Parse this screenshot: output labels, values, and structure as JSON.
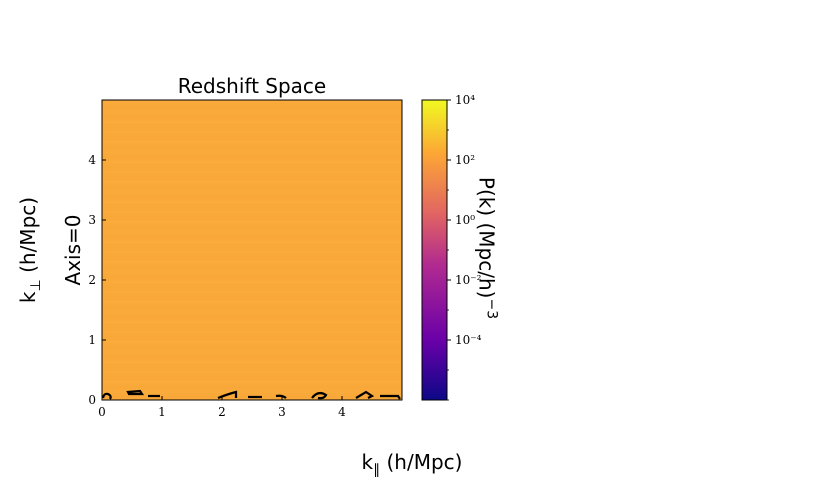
{
  "chart_data": {
    "type": "heatmap",
    "title": "Redshift Space",
    "xlabel": "k∥ (h/Mpc)",
    "ylabel": "k⊥ (h/Mpc)",
    "row_label": "Axis=0",
    "xlim": [
      0,
      5
    ],
    "ylim": [
      0,
      5
    ],
    "xticks": [
      "0",
      "1",
      "2",
      "3",
      "4"
    ],
    "yticks": [
      "0",
      "1",
      "2",
      "3",
      "4"
    ],
    "colormap": "plasma",
    "colorbar": {
      "label": "P(k) (Mpc/h)−3",
      "scale": "log",
      "range": [
        1e-06,
        10000.0
      ],
      "ticks": [
        "10⁴",
        "10²",
        "10⁰",
        "10⁻²",
        "10⁻⁴"
      ]
    },
    "values_note": "nearly uniform P(k) across the plane, approximately 10^2 to 10^3",
    "typical_value": 300
  },
  "colors": {
    "field": "#F9A93A",
    "contour": "#000000",
    "cmap": [
      "#0d0887",
      "#6a00a8",
      "#b12a90",
      "#e16462",
      "#fca636",
      "#f0f921"
    ]
  }
}
